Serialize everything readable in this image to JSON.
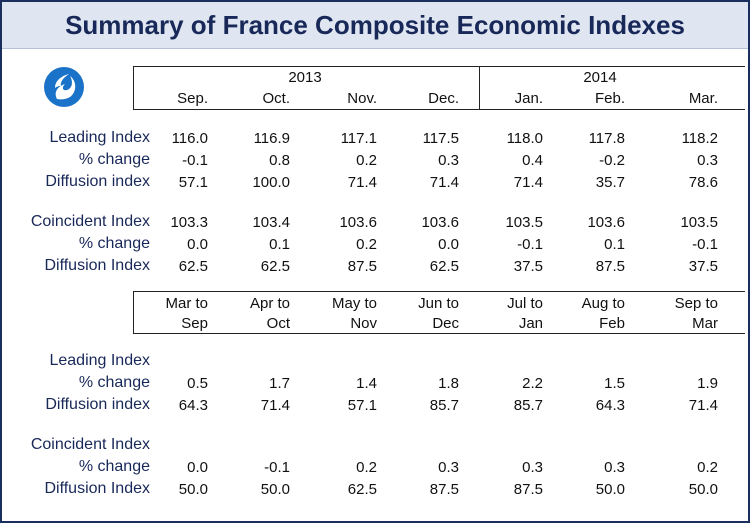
{
  "title": "Summary of France Composite Economic Indexes",
  "logo": {
    "icon": "flame-logo-icon",
    "color": "#1a73c8"
  },
  "monthly": {
    "years": [
      "2013",
      "2014"
    ],
    "months": [
      "Sep.",
      "Oct.",
      "Nov.",
      "Dec.",
      "Jan.",
      "Feb.",
      "Mar."
    ],
    "rows": [
      {
        "label": "Leading Index",
        "values": [
          "116.0",
          "116.9",
          "117.1",
          "117.5",
          "118.0",
          "117.8",
          "118.2"
        ]
      },
      {
        "label": "% change",
        "values": [
          "-0.1",
          "0.8",
          "0.2",
          "0.3",
          "0.4",
          "-0.2",
          "0.3"
        ]
      },
      {
        "label": "Diffusion index",
        "values": [
          "57.1",
          "100.0",
          "71.4",
          "71.4",
          "71.4",
          "35.7",
          "78.6"
        ]
      },
      {
        "label": "Coincident Index",
        "values": [
          "103.3",
          "103.4",
          "103.6",
          "103.6",
          "103.5",
          "103.6",
          "103.5"
        ]
      },
      {
        "label": "% change",
        "values": [
          "0.0",
          "0.1",
          "0.2",
          "0.0",
          "-0.1",
          "0.1",
          "-0.1"
        ]
      },
      {
        "label": "Diffusion Index",
        "values": [
          "62.5",
          "62.5",
          "87.5",
          "62.5",
          "37.5",
          "87.5",
          "37.5"
        ]
      }
    ]
  },
  "sixmonth": {
    "periods": [
      {
        "top": "Mar to",
        "bottom": "Sep"
      },
      {
        "top": "Apr to",
        "bottom": "Oct"
      },
      {
        "top": "May to",
        "bottom": "Nov"
      },
      {
        "top": "Jun to",
        "bottom": "Dec"
      },
      {
        "top": "Jul to",
        "bottom": "Jan"
      },
      {
        "top": "Aug to",
        "bottom": "Feb"
      },
      {
        "top": "Sep to",
        "bottom": "Mar"
      }
    ],
    "rows": [
      {
        "label": "Leading Index",
        "values": [
          "",
          "",
          "",
          "",
          "",
          "",
          ""
        ]
      },
      {
        "label": "% change",
        "values": [
          "0.5",
          "1.7",
          "1.4",
          "1.8",
          "2.2",
          "1.5",
          "1.9"
        ]
      },
      {
        "label": "Diffusion index",
        "values": [
          "64.3",
          "71.4",
          "57.1",
          "85.7",
          "85.7",
          "64.3",
          "71.4"
        ]
      },
      {
        "label": "Coincident Index",
        "values": [
          "",
          "",
          "",
          "",
          "",
          "",
          ""
        ]
      },
      {
        "label": "% change",
        "values": [
          "0.0",
          "-0.1",
          "0.2",
          "0.3",
          "0.3",
          "0.3",
          "0.2"
        ]
      },
      {
        "label": "Diffusion Index",
        "values": [
          "50.0",
          "50.0",
          "62.5",
          "87.5",
          "87.5",
          "50.0",
          "50.0"
        ]
      }
    ]
  }
}
